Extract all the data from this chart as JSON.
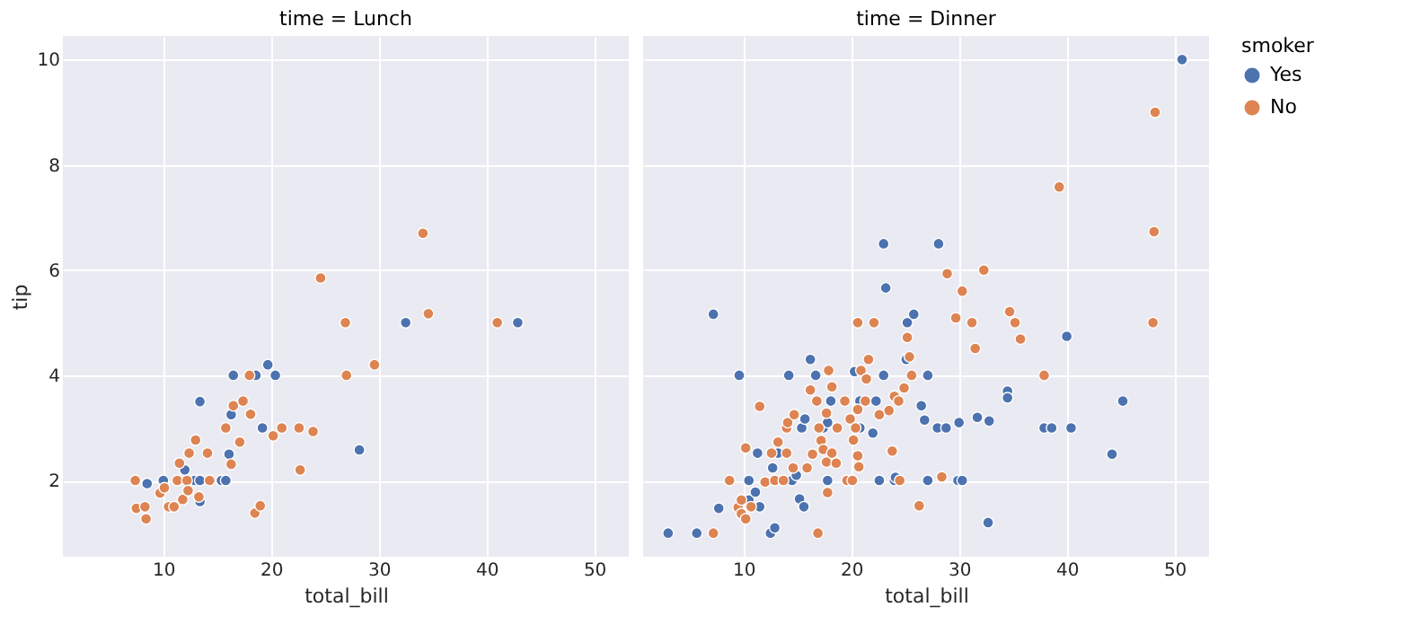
{
  "chart_data": [
    {
      "type": "scatter",
      "title": "time = Lunch",
      "xlabel": "total_bill",
      "ylabel": "tip",
      "xlim": [
        0.68,
        53.2
      ],
      "ylim": [
        0.55,
        10.45
      ],
      "xticks": [
        10,
        20,
        30,
        40,
        50
      ],
      "yticks": [
        2,
        4,
        6,
        8,
        10
      ],
      "grid": true,
      "marker": "circle",
      "legend": false,
      "series": [
        {
          "color": "#4c72b0",
          "x": [
            8.5,
            10.0,
            12.0,
            12.9,
            13.4,
            13.4,
            13.4,
            15.4,
            15.8,
            16.1,
            16.3,
            16.5,
            18.6,
            19.2,
            19.7,
            20.4,
            28.2,
            32.5,
            42.9
          ],
          "values": [
            1.94,
            2.0,
            2.2,
            2.0,
            2.0,
            3.5,
            1.6,
            2.0,
            2.0,
            2.5,
            3.25,
            4.0,
            4.0,
            3.0,
            4.2,
            4.0,
            2.58,
            5.0,
            5.0
          ]
        },
        {
          "color": "#dd8452",
          "x": [
            7.4,
            7.5,
            8.3,
            8.4,
            9.7,
            10.1,
            10.5,
            11.0,
            11.3,
            11.5,
            11.8,
            12.2,
            12.3,
            12.4,
            13.0,
            13.3,
            14.1,
            14.3,
            15.8,
            16.3,
            16.5,
            17.1,
            17.4,
            18.0,
            18.1,
            18.5,
            19.0,
            20.2,
            21.0,
            22.6,
            22.7,
            23.9,
            24.6,
            26.9,
            27.0,
            29.6,
            34.1,
            34.6,
            41.0
          ],
          "values": [
            2.0,
            1.47,
            1.5,
            1.27,
            1.76,
            1.86,
            1.5,
            1.5,
            2.0,
            2.33,
            1.64,
            2.0,
            1.81,
            2.52,
            2.77,
            1.69,
            2.52,
            2.0,
            3.0,
            2.31,
            3.42,
            2.73,
            3.51,
            4.0,
            3.26,
            1.38,
            1.52,
            2.85,
            3.0,
            3.0,
            2.2,
            2.93,
            5.85,
            5.0,
            4.0,
            4.2,
            6.7,
            5.17,
            5.0
          ]
        }
      ]
    },
    {
      "type": "scatter",
      "title": "time = Dinner",
      "xlabel": "total_bill",
      "legend_title": "smoker",
      "xlim": [
        0.68,
        53.2
      ],
      "ylim": [
        0.55,
        10.45
      ],
      "xticks": [
        10,
        20,
        30,
        40,
        50
      ],
      "yticks": [
        2,
        4,
        6,
        8,
        10
      ],
      "tick_labels": "x",
      "grid": true,
      "marker": "circle",
      "legend": "right",
      "series": [
        {
          "name": "Yes",
          "color": "#4c72b0",
          "x": [
            3.0,
            5.66,
            7.2,
            7.7,
            9.6,
            10.5,
            10.5,
            11.1,
            11.3,
            11.5,
            12.5,
            12.7,
            12.9,
            13.2,
            14.2,
            14.5,
            14.9,
            15.2,
            15.4,
            15.6,
            15.7,
            16.2,
            16.7,
            17.4,
            17.8,
            17.8,
            18.1,
            20.3,
            20.8,
            20.8,
            22.0,
            22.3,
            22.6,
            23.0,
            23.0,
            23.2,
            24.0,
            24.1,
            25.1,
            25.2,
            25.8,
            26.5,
            26.8,
            27.1,
            27.1,
            28.0,
            28.1,
            28.8,
            29.9,
            30.3,
            30.0,
            31.7,
            32.7,
            32.8,
            34.5,
            34.5,
            37.9,
            38.6,
            40.0,
            40.4,
            44.2,
            45.2,
            50.7
          ],
          "values": [
            1.0,
            1.0,
            5.16,
            1.47,
            4.0,
            2.0,
            1.63,
            1.78,
            2.52,
            1.5,
            1.0,
            2.24,
            1.1,
            2.52,
            4.0,
            2.0,
            2.1,
            1.65,
            3.0,
            1.5,
            3.17,
            4.3,
            4.0,
            3.0,
            2.0,
            3.1,
            3.51,
            4.07,
            3.51,
            3.0,
            2.9,
            3.51,
            2.0,
            4.0,
            6.5,
            5.66,
            2.0,
            2.06,
            4.3,
            5.0,
            5.16,
            3.42,
            3.15,
            4.0,
            2.0,
            3.0,
            6.5,
            3.0,
            2.0,
            2.0,
            3.1,
            3.2,
            1.2,
            3.13,
            3.7,
            3.57,
            3.0,
            3.0,
            4.74,
            3.0,
            2.5,
            3.51,
            10.0
          ]
        },
        {
          "name": "No",
          "color": "#dd8452",
          "x": [
            7.2,
            8.7,
            9.5,
            9.8,
            9.8,
            10.2,
            10.2,
            10.7,
            11.5,
            12.0,
            12.6,
            12.9,
            13.2,
            13.7,
            14.0,
            14.0,
            14.1,
            14.6,
            14.7,
            15.9,
            16.2,
            16.4,
            16.8,
            16.9,
            17.0,
            17.2,
            17.4,
            17.7,
            17.7,
            17.8,
            17.9,
            18.2,
            18.2,
            18.7,
            18.6,
            19.4,
            19.6,
            19.9,
            20.1,
            20.2,
            20.4,
            20.6,
            20.6,
            20.6,
            20.7,
            20.9,
            21.3,
            21.4,
            21.6,
            22.1,
            22.6,
            23.5,
            23.8,
            24.0,
            24.4,
            24.5,
            24.9,
            25.2,
            25.4,
            25.6,
            26.3,
            28.4,
            28.9,
            29.7,
            30.3,
            31.2,
            31.5,
            32.3,
            34.7,
            35.2,
            35.7,
            37.9,
            39.3,
            48.0,
            48.1,
            48.2
          ],
          "values": [
            1.0,
            2.0,
            1.49,
            1.63,
            1.37,
            1.27,
            2.62,
            1.5,
            3.41,
            1.97,
            2.52,
            2.0,
            2.73,
            2.0,
            3.0,
            2.52,
            3.1,
            2.24,
            3.25,
            2.24,
            3.72,
            2.5,
            3.51,
            1.0,
            3.0,
            2.76,
            2.59,
            2.35,
            3.28,
            1.77,
            4.09,
            3.78,
            2.52,
            3.0,
            2.33,
            3.51,
            2.0,
            3.17,
            2.0,
            2.77,
            3.0,
            3.35,
            5.0,
            2.47,
            2.26,
            4.09,
            3.51,
            3.93,
            4.3,
            5.0,
            3.25,
            3.33,
            2.56,
            3.6,
            3.51,
            2.0,
            3.76,
            4.72,
            4.35,
            4.0,
            1.52,
            2.07,
            5.93,
            5.09,
            5.6,
            5.0,
            4.51,
            6.0,
            5.21,
            5.0,
            4.69,
            4.0,
            7.58,
            5.0,
            6.73,
            9.0
          ]
        }
      ]
    }
  ]
}
